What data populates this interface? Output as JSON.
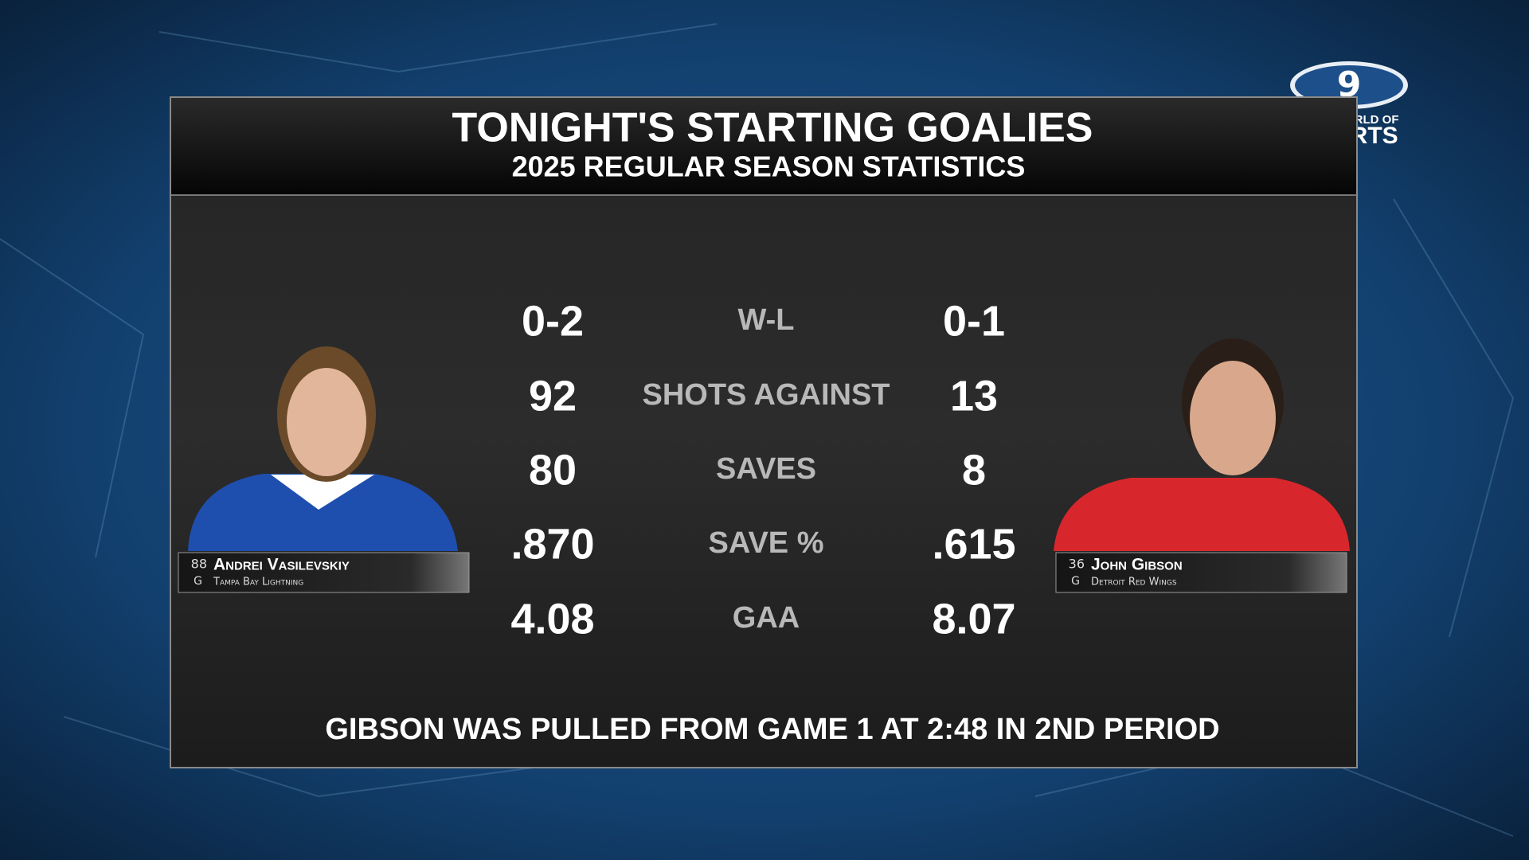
{
  "header": {
    "title": "TONIGHT'S STARTING GOALIES",
    "subtitle": "2025 REGULAR SEASON STATISTICS"
  },
  "logo": {
    "mark": "9",
    "line1": "WIDE WORLD OF",
    "line2": "SPORTS"
  },
  "players": [
    {
      "number": "88",
      "position": "G",
      "name": "Andrei Vasilevskiy",
      "team": "Tampa Bay Lightning"
    },
    {
      "number": "36",
      "position": "G",
      "name": "John Gibson",
      "team": "Detroit Red Wings"
    }
  ],
  "stats": [
    {
      "label": "W-L",
      "left": "0-2",
      "right": "0-1"
    },
    {
      "label": "SHOTS AGAINST",
      "left": "92",
      "right": "13"
    },
    {
      "label": "SAVES",
      "left": "80",
      "right": "8"
    },
    {
      "label": "SAVE %",
      "left": ".870",
      "right": ".615"
    },
    {
      "label": "GAA",
      "left": "4.08",
      "right": "8.07"
    }
  ],
  "footer": "GIBSON WAS PULLED FROM GAME 1 AT 2:48 IN 2ND PERIOD"
}
